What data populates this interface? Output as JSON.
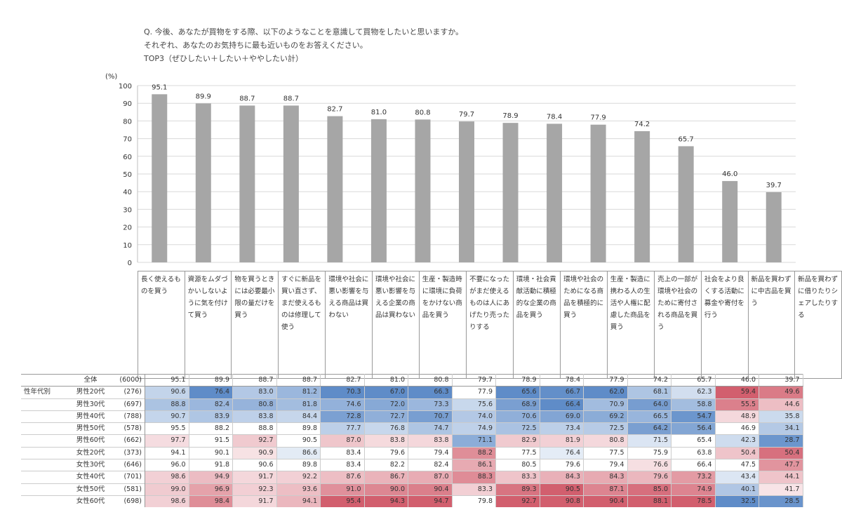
{
  "header": {
    "question": "Q. 今後、あなたが買物をする際、以下のようなことを意識して買物をしたいと思いますか。",
    "sub": "それぞれ、あなたのお気持ちに最も近いものをお答えください。",
    "note": "TOP3（ぜひしたい＋したい＋ややしたい計）"
  },
  "chart_data": {
    "type": "bar",
    "ylabel": "(%)",
    "ylim": [
      0,
      100
    ],
    "yticks": [
      0,
      10,
      20,
      30,
      40,
      50,
      60,
      70,
      80,
      90,
      100
    ],
    "grid": true,
    "bar_color": "#a6a6a6",
    "categories": [
      "長く使えるものを買う",
      "資源をムダづかいしないように気を付けて買う",
      "物を買うときには必要最小限の量だけを買う",
      "すぐに新品を買い直さず、まだ使えるものは修理して使う",
      "環境や社会に悪い影響を与える商品は買わない",
      "環境や社会に悪い影響を与える企業の商品は買わない",
      "生産・製造時に環境に負荷をかけない商品を買う",
      "不要になったがまだ使えるものは人にあげたり売ったりする",
      "環境・社会貢献活動に積極的な企業の商品を買う",
      "環境や社会のためになる商品を積極的に買う",
      "生産・製造に携わる人の生活や人権に配慮した商品を買う",
      "売上の一部が環境や社会のために寄付される商品を買う",
      "社会をより良くする活動に募金や寄付を行う",
      "新品を買わずに中古品を買う",
      "新品を買わずに借りたりシェアしたりする"
    ],
    "values": [
      95.1,
      89.9,
      88.7,
      88.7,
      82.7,
      81.0,
      80.8,
      79.7,
      78.9,
      78.4,
      77.9,
      74.2,
      65.7,
      46.0,
      39.7
    ],
    "value_labels": [
      "95.1",
      "89.9",
      "88.7",
      "88.7",
      "82.7",
      "81.0",
      "80.8",
      "79.7",
      "78.9",
      "78.4",
      "77.9",
      "74.2",
      "65.7",
      "46.0",
      "39.7"
    ],
    "table": {
      "total": {
        "label": "全体",
        "n": "(6000)",
        "values": [
          "95.1",
          "89.9",
          "88.7",
          "88.7",
          "82.7",
          "81.0",
          "80.8",
          "79.7",
          "78.9",
          "78.4",
          "77.9",
          "74.2",
          "65.7",
          "46.0",
          "39.7"
        ]
      },
      "group_label": "性年代別",
      "rows": [
        {
          "label": "男性20代",
          "n": "(276)",
          "values": [
            "90.6",
            "76.4",
            "83.0",
            "81.2",
            "70.3",
            "67.0",
            "66.3",
            "77.9",
            "65.6",
            "66.7",
            "62.0",
            "68.1",
            "62.3",
            "59.4",
            "49.6"
          ]
        },
        {
          "label": "男性30代",
          "n": "(697)",
          "values": [
            "88.8",
            "82.4",
            "80.8",
            "81.8",
            "74.6",
            "72.0",
            "73.3",
            "75.6",
            "68.9",
            "66.4",
            "70.9",
            "64.0",
            "58.8",
            "55.5",
            "44.6"
          ]
        },
        {
          "label": "男性40代",
          "n": "(788)",
          "values": [
            "90.7",
            "83.9",
            "83.8",
            "84.4",
            "72.8",
            "72.7",
            "70.7",
            "74.0",
            "70.6",
            "69.0",
            "69.2",
            "66.5",
            "54.7",
            "48.9",
            "35.8"
          ]
        },
        {
          "label": "男性50代",
          "n": "(578)",
          "values": [
            "95.5",
            "88.2",
            "88.8",
            "89.8",
            "77.7",
            "76.8",
            "74.7",
            "74.9",
            "72.5",
            "73.4",
            "72.5",
            "64.2",
            "56.4",
            "46.9",
            "34.1"
          ]
        },
        {
          "label": "男性60代",
          "n": "(662)",
          "values": [
            "97.7",
            "91.5",
            "92.7",
            "90.5",
            "87.0",
            "83.8",
            "83.8",
            "71.1",
            "82.9",
            "81.9",
            "80.8",
            "71.5",
            "65.4",
            "42.3",
            "28.7"
          ]
        },
        {
          "label": "女性20代",
          "n": "(373)",
          "values": [
            "94.1",
            "90.1",
            "90.9",
            "86.6",
            "83.4",
            "79.6",
            "79.4",
            "88.2",
            "77.5",
            "76.4",
            "77.5",
            "75.9",
            "63.8",
            "50.4",
            "50.4"
          ]
        },
        {
          "label": "女性30代",
          "n": "(646)",
          "values": [
            "96.0",
            "91.8",
            "90.6",
            "89.8",
            "83.4",
            "82.2",
            "82.4",
            "86.1",
            "80.5",
            "79.6",
            "79.4",
            "76.6",
            "66.4",
            "47.5",
            "47.7"
          ]
        },
        {
          "label": "女性40代",
          "n": "(701)",
          "values": [
            "98.6",
            "94.9",
            "91.7",
            "92.2",
            "87.6",
            "86.7",
            "87.0",
            "88.3",
            "83.3",
            "84.3",
            "84.3",
            "79.6",
            "73.2",
            "43.4",
            "44.1"
          ]
        },
        {
          "label": "女性50代",
          "n": "(581)",
          "values": [
            "99.0",
            "96.9",
            "92.3",
            "93.6",
            "91.0",
            "90.0",
            "90.4",
            "83.3",
            "89.3",
            "90.5",
            "87.1",
            "85.0",
            "74.9",
            "40.1",
            "41.7"
          ]
        },
        {
          "label": "女性60代",
          "n": "(698)",
          "values": [
            "98.6",
            "98.4",
            "91.7",
            "94.1",
            "95.4",
            "94.3",
            "94.7",
            "79.8",
            "92.7",
            "90.8",
            "90.4",
            "88.1",
            "78.5",
            "32.5",
            "28.5"
          ]
        }
      ]
    }
  }
}
